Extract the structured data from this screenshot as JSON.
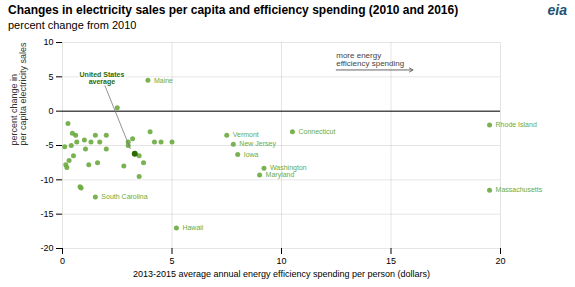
{
  "chart_data": {
    "type": "scatter",
    "title": "Changes in electricity sales per capita and efficiency spending (2010 and 2016)",
    "subtitle": "percent change from 2010",
    "logo": "eia",
    "x_label": "2013-2015 average annual energy efficiency spending per person (dollars)",
    "y_label": "percent change in\nper capita electricity sales",
    "xlim": [
      0,
      20
    ],
    "ylim": [
      -20,
      10
    ],
    "xticks": [
      0,
      5,
      10,
      15,
      20
    ],
    "yticks": [
      -20,
      -15,
      -10,
      -5,
      0,
      5,
      10
    ],
    "grid": true,
    "color": "#6aab3e",
    "zero_line": 0,
    "x": [
      0.1,
      0.15,
      0.2,
      0.25,
      0.3,
      0.4,
      0.45,
      0.5,
      0.6,
      0.65,
      0.8,
      0.85,
      1.0,
      1.05,
      1.2,
      1.3,
      1.5,
      1.6,
      1.7,
      2.0,
      2.0,
      2.5,
      2.8,
      3.0,
      3.0,
      3.2,
      3.5,
      3.5,
      3.7,
      4.0,
      4.2,
      4.5,
      5.0
    ],
    "values": [
      -5.2,
      -7.8,
      -8.2,
      -1.8,
      -7.2,
      -5.0,
      -3.2,
      -6.5,
      -3.5,
      -4.5,
      -11.0,
      -11.2,
      -4.2,
      -5.5,
      -7.8,
      -4.5,
      -3.5,
      -7.5,
      -4.5,
      -5.5,
      -3.5,
      0.5,
      -8.0,
      -4.5,
      -5.0,
      -4.0,
      -6.5,
      -9.5,
      -7.5,
      -3.0,
      -4.5,
      -4.5,
      -4.5
    ],
    "highlight": {
      "x": 3.3,
      "y": -6.2,
      "color": "#2d6a00",
      "label": "United States\naverage",
      "label_x": 1.8,
      "label_y": 4.8,
      "line_to_x": 3.1,
      "line_to_y": -5.5
    },
    "labeled_points": [
      {
        "x": 3.9,
        "y": 4.5,
        "label": "Maine"
      },
      {
        "x": 1.5,
        "y": -12.5,
        "label": "South Carolina"
      },
      {
        "x": 5.2,
        "y": -17.0,
        "label": "Hawaii"
      },
      {
        "x": 7.5,
        "y": -3.5,
        "label": "Vermont"
      },
      {
        "x": 7.8,
        "y": -4.8,
        "label": "New Jersey"
      },
      {
        "x": 8.0,
        "y": -6.3,
        "label": "Iowa"
      },
      {
        "x": 9.2,
        "y": -8.3,
        "label": "Washington"
      },
      {
        "x": 9.0,
        "y": -9.3,
        "label": "Maryland"
      },
      {
        "x": 10.5,
        "y": -3.0,
        "label": "Connecticut"
      },
      {
        "x": 19.5,
        "y": -2.0,
        "label": "Rhode Island"
      },
      {
        "x": 19.5,
        "y": -11.5,
        "label": "Massachusetts"
      }
    ],
    "arrow": {
      "text": "more energy\nefficiency spending",
      "x_start": 12.5,
      "x_end": 16.0,
      "y": 6.0
    }
  }
}
